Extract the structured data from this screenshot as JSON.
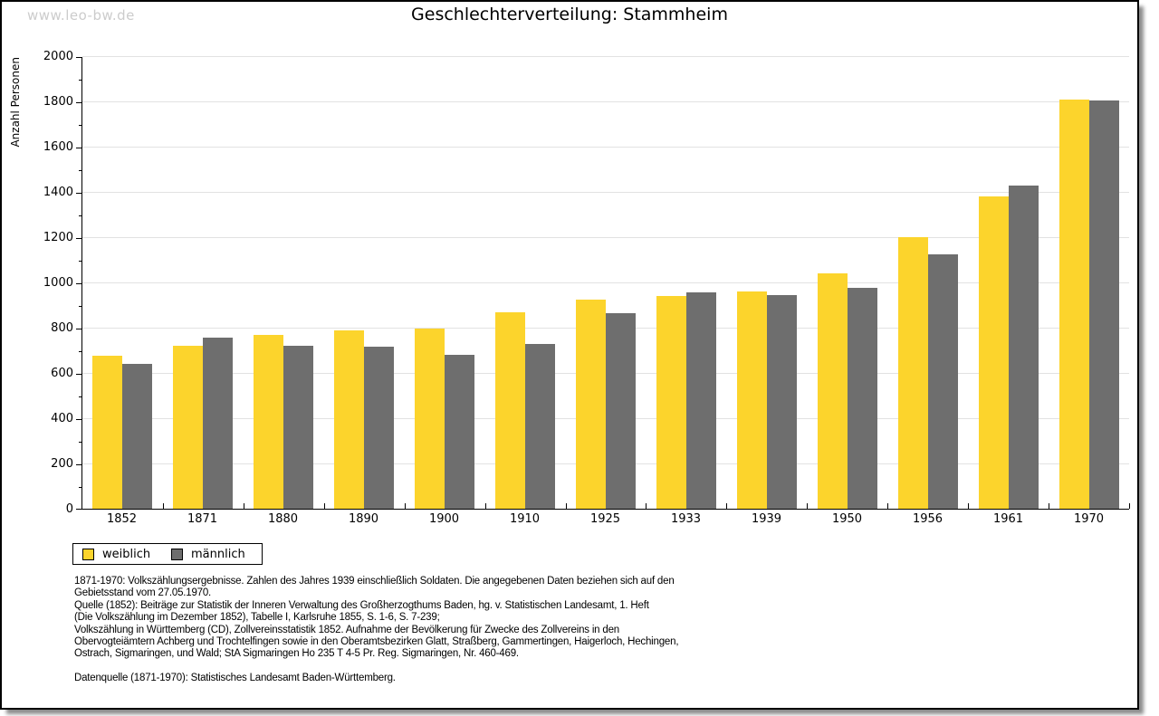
{
  "watermark": "www.leo-bw.de",
  "title": "Geschlechterverteilung: Stammheim",
  "chart_data": {
    "type": "bar",
    "title": "Geschlechterverteilung: Stammheim",
    "ylabel": "Anzahl Personen",
    "xlabel": "",
    "ylim": [
      0,
      2000
    ],
    "yticks": [
      0,
      200,
      400,
      600,
      800,
      1000,
      1200,
      1400,
      1600,
      1800,
      2000
    ],
    "minor_tick_step": 100,
    "grid": true,
    "legend_position": "bottom-left",
    "categories": [
      "1852",
      "1871",
      "1880",
      "1890",
      "1900",
      "1910",
      "1925",
      "1933",
      "1939",
      "1950",
      "1956",
      "1961",
      "1970"
    ],
    "series": [
      {
        "name": "weiblich",
        "color": "#FCD42C",
        "values": [
          675,
          720,
          770,
          790,
          795,
          870,
          925,
          940,
          960,
          1040,
          1200,
          1380,
          1810
        ]
      },
      {
        "name": "männlich",
        "color": "#6E6E6E",
        "values": [
          640,
          755,
          720,
          715,
          680,
          730,
          865,
          955,
          945,
          975,
          1125,
          1430,
          1805
        ]
      }
    ]
  },
  "legend": {
    "items": [
      {
        "label": "weiblich",
        "color": "#FCD42C"
      },
      {
        "label": "männlich",
        "color": "#6E6E6E"
      }
    ]
  },
  "footnotes": {
    "lines": [
      "1871-1970: Volkszählungsergebnisse. Zahlen des Jahres 1939 einschließlich Soldaten. Die angegebenen Daten beziehen sich auf den",
      "Gebietsstand vom 27.05.1970.",
      "Quelle (1852): Beiträge zur Statistik der Inneren Verwaltung des Großherzogthums Baden, hg. v. Statistischen Landesamt, 1. Heft",
      "(Die Volkszählung im Dezember 1852), Tabelle I, Karlsruhe 1855, S. 1-6, S. 7-239;",
      "Volkszählung in Württemberg (CD), Zollvereinsstatistik 1852. Aufnahme der Bevölkerung für Zwecke des Zollvereins in den",
      "Obervogteiämtern Achberg und Trochtelfingen sowie in den Oberamtsbezirken Glatt, Straßberg, Gammertingen, Haigerloch, Hechingen,",
      "Ostrach, Sigmaringen, und Wald; StA Sigmaringen Ho 235 T 4-5 Pr. Reg. Sigmaringen, Nr. 460-469."
    ],
    "datasource": "Datenquelle (1871-1970): Statistisches Landesamt Baden-Württemberg."
  },
  "colors": {
    "gridline": "#e2e2e2",
    "axis": "#000000",
    "watermark": "#cccccc"
  }
}
